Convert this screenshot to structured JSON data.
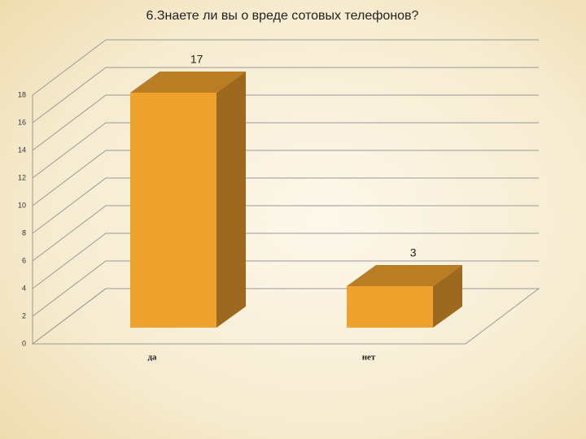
{
  "chart_data": {
    "type": "bar3d",
    "title": "6.Знаете ли вы о вреде сотовых телефонов?",
    "categories": [
      "да",
      "нет"
    ],
    "values": [
      17,
      3
    ],
    "color": "#f0a22e",
    "ylim": [
      0,
      18
    ],
    "yticks": [
      0,
      2,
      4,
      6,
      8,
      10,
      12,
      14,
      16,
      18
    ],
    "grid": true
  }
}
